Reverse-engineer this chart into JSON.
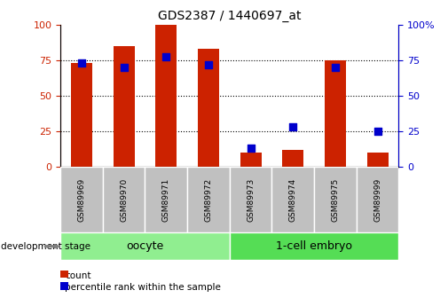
{
  "title": "GDS2387 / 1440697_at",
  "samples": [
    "GSM89969",
    "GSM89970",
    "GSM89971",
    "GSM89972",
    "GSM89973",
    "GSM89974",
    "GSM89975",
    "GSM89999"
  ],
  "red_bars": [
    73,
    85,
    100,
    83,
    10,
    12,
    75,
    10
  ],
  "blue_dots": [
    73,
    70,
    77,
    72,
    13,
    28,
    70,
    25
  ],
  "groups": [
    {
      "label": "oocyte",
      "start": 0,
      "end": 4,
      "color": "#90EE90"
    },
    {
      "label": "1-cell embryo",
      "start": 4,
      "end": 8,
      "color": "#55DD55"
    }
  ],
  "group_label": "development stage",
  "ylim": [
    0,
    100
  ],
  "yticks": [
    0,
    25,
    50,
    75,
    100
  ],
  "bar_color": "#CC2200",
  "dot_color": "#0000CC",
  "left_axis_color": "#CC2200",
  "right_axis_color": "#0000CC",
  "legend_count_label": "count",
  "legend_pct_label": "percentile rank within the sample",
  "bar_width": 0.5,
  "dot_size": 30
}
